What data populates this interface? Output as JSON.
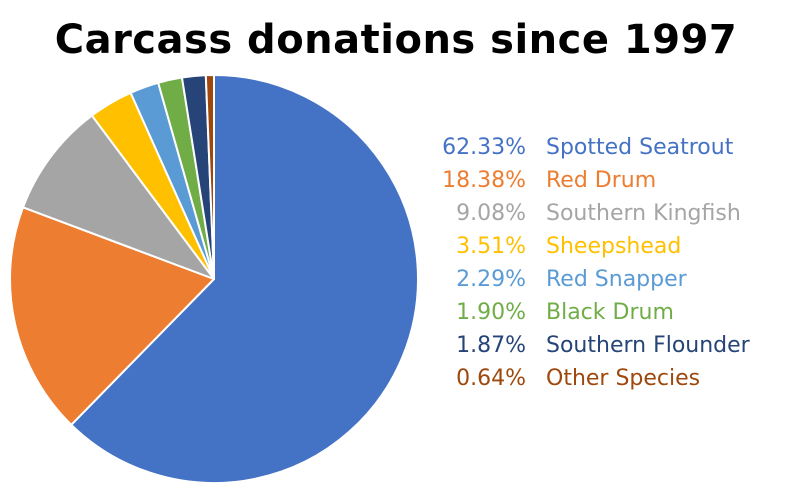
{
  "chart_data": {
    "type": "pie",
    "title": "Carcass donations since 1997",
    "legend_placement": "right",
    "slices": [
      {
        "label": "Spotted Seatrout",
        "pct_label": "62.33%",
        "value": 62.33,
        "color": "#4472C4"
      },
      {
        "label": "Red Drum",
        "pct_label": "18.38%",
        "value": 18.38,
        "color": "#ED7D31"
      },
      {
        "label": "Southern Kingfish",
        "pct_label": "9.08%",
        "value": 9.08,
        "color": "#A5A5A5"
      },
      {
        "label": "Sheepshead",
        "pct_label": "3.51%",
        "value": 3.51,
        "color": "#FFC000"
      },
      {
        "label": "Red Snapper",
        "pct_label": "2.29%",
        "value": 2.29,
        "color": "#5B9BD5"
      },
      {
        "label": "Black Drum",
        "pct_label": "1.90%",
        "value": 1.9,
        "color": "#70AD47"
      },
      {
        "label": "Southern Flounder",
        "pct_label": "1.87%",
        "value": 1.87,
        "color": "#264478"
      },
      {
        "label": "Other Species",
        "pct_label": "0.64%",
        "value": 0.64,
        "color": "#9E480E"
      }
    ]
  }
}
